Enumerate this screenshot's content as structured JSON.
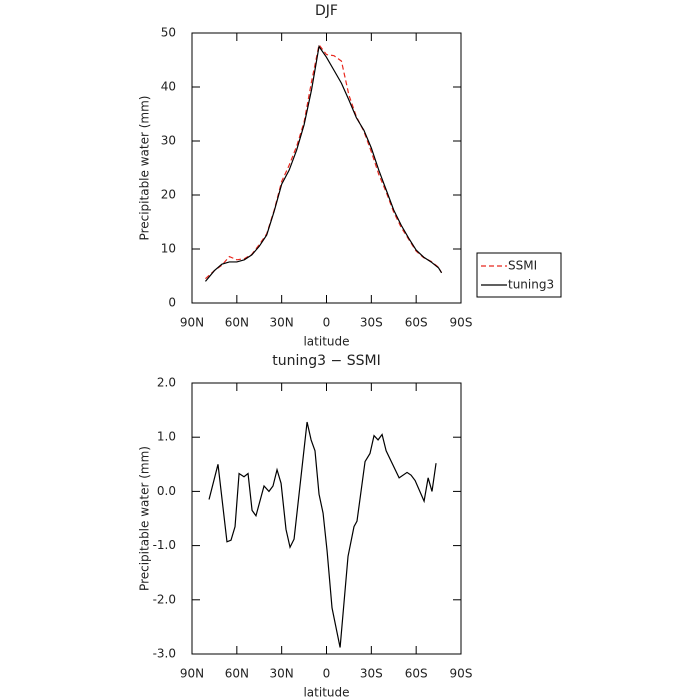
{
  "chart_data": [
    {
      "type": "line",
      "title": "DJF",
      "xlabel": "latitude",
      "ylabel": "Precipitable water (mm)",
      "x": [
        81,
        75,
        70,
        65,
        60,
        55,
        50,
        45,
        40,
        35,
        30,
        25,
        20,
        15,
        10,
        5,
        0,
        -5,
        -10,
        -15,
        -20,
        -25,
        -30,
        -35,
        -40,
        -45,
        -50,
        -55,
        -60,
        -65,
        -70,
        -75,
        -77
      ],
      "series": [
        {
          "name": "SSMI",
          "color": "#e8281e",
          "dash": true,
          "values": [
            4.5,
            6.0,
            7.0,
            8.6,
            8.0,
            8.2,
            9.0,
            10.8,
            12.8,
            17.2,
            22.5,
            25.5,
            29,
            33.5,
            41,
            47.8,
            46,
            45.8,
            44.8,
            38.5,
            34.5,
            31.8,
            28,
            23.8,
            20.5,
            16.8,
            14,
            11.8,
            9.6,
            8.4,
            7.7,
            6.6,
            5.6
          ]
        },
        {
          "name": "tuning3",
          "color": "#000000",
          "dash": false,
          "values": [
            4.0,
            6.0,
            7.2,
            7.6,
            7.6,
            8.0,
            8.9,
            10.5,
            12.6,
            17,
            22,
            24.6,
            28.3,
            33,
            39.5,
            47.5,
            45.5,
            43.1,
            40.7,
            37.6,
            34.3,
            32.0,
            28.7,
            24.6,
            20.9,
            17.2,
            14.4,
            12.0,
            9.8,
            8.5,
            7.6,
            6.5,
            5.6
          ]
        }
      ],
      "xlim": [
        90,
        -90
      ],
      "xticks": [
        {
          "value": 90,
          "label": "90N"
        },
        {
          "value": 60,
          "label": "60N"
        },
        {
          "value": 30,
          "label": "30N"
        },
        0,
        {
          "value": -30,
          "label": "30S"
        },
        {
          "value": -60,
          "label": "60S"
        },
        {
          "value": -90,
          "label": "90S"
        }
      ],
      "ylim": [
        0,
        50
      ],
      "yticks": [
        0,
        10,
        20,
        30,
        40,
        50
      ],
      "legend": "right-outside"
    },
    {
      "type": "line",
      "title": "tuning3 − SSMI",
      "xlabel": "latitude",
      "ylabel": "Precipitable water (mm)",
      "x": [
        78.6,
        72.6,
        66.6,
        63.9,
        61.2,
        58.5,
        55.2,
        52.5,
        49.8,
        47.2,
        41.8,
        38.5,
        35.8,
        33.1,
        30.4,
        27.1,
        24.4,
        21.7,
        13.0,
        10.3,
        7.7,
        5.0,
        2.3,
        -0.4,
        -3.7,
        -9.1,
        -14.4,
        -18.4,
        -20.4,
        -25.8,
        -29.1,
        -31.8,
        -34.5,
        -37.2,
        -39.9,
        -48.6,
        -53.9,
        -56.6,
        -59.3,
        -65.3,
        -68.0,
        -70.6,
        -73.3
      ],
      "values": [
        -0.15,
        0.5,
        -0.93,
        -0.9,
        -0.65,
        0.33,
        0.27,
        0.33,
        -0.35,
        -0.45,
        0.1,
        0.0,
        0.1,
        0.4,
        0.15,
        -0.7,
        -1.03,
        -0.88,
        1.28,
        0.95,
        0.75,
        -0.05,
        -0.4,
        -1.1,
        -2.15,
        -2.88,
        -1.2,
        -0.65,
        -0.55,
        0.55,
        0.7,
        1.03,
        0.95,
        1.05,
        0.75,
        0.25,
        0.35,
        0.3,
        0.2,
        -0.18,
        0.25,
        0.0,
        0.52
      ],
      "color": "#000000",
      "xlim": [
        90,
        -90
      ],
      "xticks": [
        {
          "value": 90,
          "label": "90N"
        },
        {
          "value": 60,
          "label": "60N"
        },
        {
          "value": 30,
          "label": "30N"
        },
        0,
        {
          "value": -30,
          "label": "30S"
        },
        {
          "value": -60,
          "label": "60S"
        },
        {
          "value": -90,
          "label": "90S"
        }
      ],
      "ylim": [
        -3,
        2
      ],
      "yticks": [
        {
          "value": 2,
          "label": "2.0"
        },
        {
          "value": 1,
          "label": "1.0"
        },
        {
          "value": 0,
          "label": "0.0"
        },
        {
          "value": -1,
          "label": "-1.0"
        },
        {
          "value": -2,
          "label": "-2.0"
        },
        {
          "value": -3,
          "label": "-3.0"
        }
      ]
    }
  ]
}
